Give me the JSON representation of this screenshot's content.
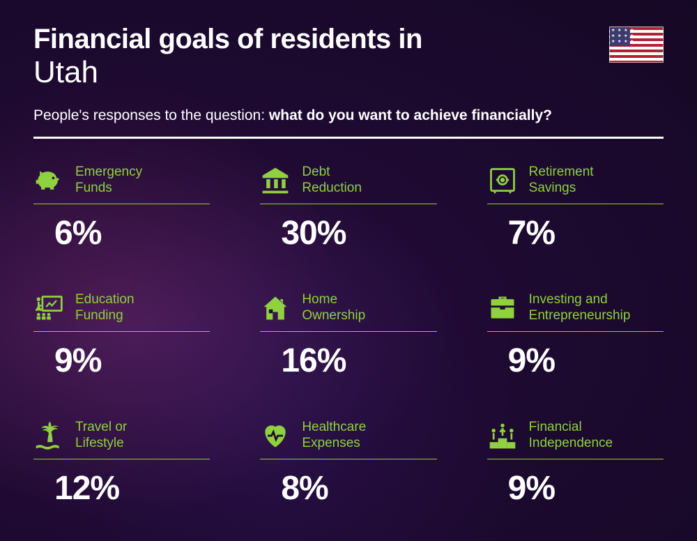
{
  "title": {
    "line1": "Financial goals of residents in",
    "line2": "Utah"
  },
  "subtitle": {
    "prefix": "People's responses to the question: ",
    "bold": "what do you want to achieve financially?"
  },
  "colors": {
    "accent": "#8fd13f",
    "text": "#ffffff",
    "background_inner": "#3d1852",
    "background_outer": "#160825",
    "divider": "#ffffff"
  },
  "layout": {
    "type": "infographic",
    "columns": 3,
    "rows": 3,
    "label_fontsize": 19,
    "value_fontsize": 48,
    "title_fontsize_line1": 40,
    "title_fontsize_line2": 44,
    "subtitle_fontsize": 21
  },
  "items": [
    {
      "icon": "piggy-bank-icon",
      "label": "Emergency\nFunds",
      "value": "6%"
    },
    {
      "icon": "bank-icon",
      "label": "Debt\nReduction",
      "value": "30%"
    },
    {
      "icon": "safe-icon",
      "label": "Retirement\nSavings",
      "value": "7%"
    },
    {
      "icon": "presentation-icon",
      "label": "Education\nFunding",
      "value": "9%"
    },
    {
      "icon": "house-icon",
      "label": "Home\nOwnership",
      "value": "16%"
    },
    {
      "icon": "briefcase-icon",
      "label": "Investing and\nEntrepreneurship",
      "value": "9%"
    },
    {
      "icon": "palm-icon",
      "label": "Travel or\nLifestyle",
      "value": "12%"
    },
    {
      "icon": "heart-pulse-icon",
      "label": "Healthcare\nExpenses",
      "value": "8%"
    },
    {
      "icon": "podium-icon",
      "label": "Financial\nIndependence",
      "value": "9%"
    }
  ]
}
